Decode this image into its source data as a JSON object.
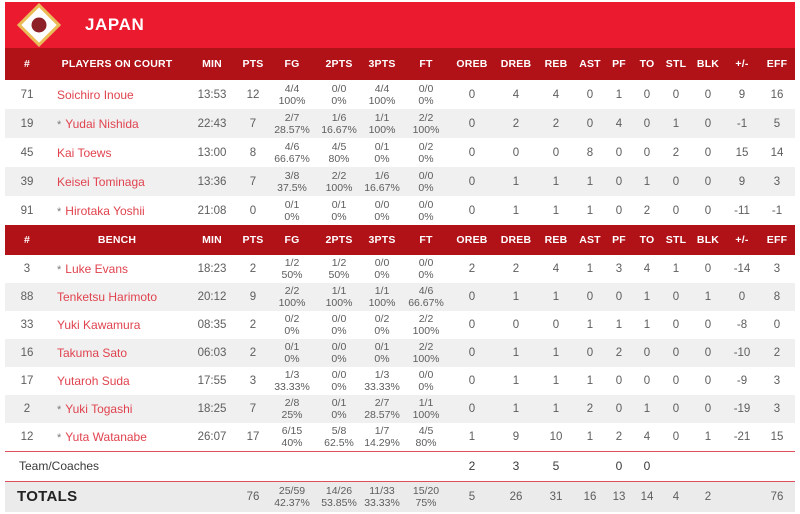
{
  "team_header": {
    "team_name": "JAPAN",
    "flag_icon": "japan-flag"
  },
  "colors": {
    "band_red": "#ec1a2e",
    "header_red": "#b11218",
    "player_name_red": "#e0434e",
    "stripe": "#f0f0f1",
    "separator_red": "#dd4f5b",
    "totals_bg": "#ebebeb",
    "flag_gold": "#e9bd55",
    "flag_circle": "#8e2127"
  },
  "columns": [
    "#",
    "PLAYERS ON COURT",
    "MIN",
    "PTS",
    "FG",
    "2PTS",
    "3PTS",
    "FT",
    "OREB",
    "DREB",
    "REB",
    "AST",
    "PF",
    "TO",
    "STL",
    "BLK",
    "+/-",
    "EFF"
  ],
  "bench_columns": [
    "#",
    "BENCH",
    "MIN",
    "PTS",
    "FG",
    "2PTS",
    "3PTS",
    "FT",
    "OREB",
    "DREB",
    "REB",
    "AST",
    "PF",
    "TO",
    "STL",
    "BLK",
    "+/-",
    "EFF"
  ],
  "players_on_court": [
    {
      "num": "71",
      "star": false,
      "name": "Soichiro Inoue",
      "min": "13:53",
      "pts": "12",
      "fg": "4/4",
      "fg_pct": "100%",
      "p2": "0/0",
      "p2_pct": "0%",
      "p3": "4/4",
      "p3_pct": "100%",
      "ft": "0/0",
      "ft_pct": "0%",
      "oreb": "0",
      "dreb": "4",
      "reb": "4",
      "ast": "0",
      "pf": "1",
      "to": "0",
      "stl": "0",
      "blk": "0",
      "pm": "9",
      "eff": "16"
    },
    {
      "num": "19",
      "star": true,
      "name": "Yudai Nishida",
      "min": "22:43",
      "pts": "7",
      "fg": "2/7",
      "fg_pct": "28.57%",
      "p2": "1/6",
      "p2_pct": "16.67%",
      "p3": "1/1",
      "p3_pct": "100%",
      "ft": "2/2",
      "ft_pct": "100%",
      "oreb": "0",
      "dreb": "2",
      "reb": "2",
      "ast": "0",
      "pf": "4",
      "to": "0",
      "stl": "1",
      "blk": "0",
      "pm": "-1",
      "eff": "5"
    },
    {
      "num": "45",
      "star": false,
      "name": "Kai Toews",
      "min": "13:00",
      "pts": "8",
      "fg": "4/6",
      "fg_pct": "66.67%",
      "p2": "4/5",
      "p2_pct": "80%",
      "p3": "0/1",
      "p3_pct": "0%",
      "ft": "0/2",
      "ft_pct": "0%",
      "oreb": "0",
      "dreb": "0",
      "reb": "0",
      "ast": "8",
      "pf": "0",
      "to": "0",
      "stl": "2",
      "blk": "0",
      "pm": "15",
      "eff": "14"
    },
    {
      "num": "39",
      "star": false,
      "name": "Keisei Tominaga",
      "min": "13:36",
      "pts": "7",
      "fg": "3/8",
      "fg_pct": "37.5%",
      "p2": "2/2",
      "p2_pct": "100%",
      "p3": "1/6",
      "p3_pct": "16.67%",
      "ft": "0/0",
      "ft_pct": "0%",
      "oreb": "0",
      "dreb": "1",
      "reb": "1",
      "ast": "1",
      "pf": "0",
      "to": "1",
      "stl": "0",
      "blk": "0",
      "pm": "9",
      "eff": "3"
    },
    {
      "num": "91",
      "star": true,
      "name": "Hirotaka Yoshii",
      "min": "21:08",
      "pts": "0",
      "fg": "0/1",
      "fg_pct": "0%",
      "p2": "0/1",
      "p2_pct": "0%",
      "p3": "0/0",
      "p3_pct": "0%",
      "ft": "0/0",
      "ft_pct": "0%",
      "oreb": "0",
      "dreb": "1",
      "reb": "1",
      "ast": "1",
      "pf": "0",
      "to": "2",
      "stl": "0",
      "blk": "0",
      "pm": "-11",
      "eff": "-1"
    }
  ],
  "bench": [
    {
      "num": "3",
      "star": true,
      "name": "Luke Evans",
      "min": "18:23",
      "pts": "2",
      "fg": "1/2",
      "fg_pct": "50%",
      "p2": "1/2",
      "p2_pct": "50%",
      "p3": "0/0",
      "p3_pct": "0%",
      "ft": "0/0",
      "ft_pct": "0%",
      "oreb": "2",
      "dreb": "2",
      "reb": "4",
      "ast": "1",
      "pf": "3",
      "to": "4",
      "stl": "1",
      "blk": "0",
      "pm": "-14",
      "eff": "3"
    },
    {
      "num": "88",
      "star": false,
      "name": "Tenketsu Harimoto",
      "min": "20:12",
      "pts": "9",
      "fg": "2/2",
      "fg_pct": "100%",
      "p2": "1/1",
      "p2_pct": "100%",
      "p3": "1/1",
      "p3_pct": "100%",
      "ft": "4/6",
      "ft_pct": "66.67%",
      "oreb": "0",
      "dreb": "1",
      "reb": "1",
      "ast": "0",
      "pf": "0",
      "to": "1",
      "stl": "0",
      "blk": "1",
      "pm": "0",
      "eff": "8"
    },
    {
      "num": "33",
      "star": false,
      "name": "Yuki Kawamura",
      "min": "08:35",
      "pts": "2",
      "fg": "0/2",
      "fg_pct": "0%",
      "p2": "0/0",
      "p2_pct": "0%",
      "p3": "0/2",
      "p3_pct": "0%",
      "ft": "2/2",
      "ft_pct": "100%",
      "oreb": "0",
      "dreb": "0",
      "reb": "0",
      "ast": "1",
      "pf": "1",
      "to": "1",
      "stl": "0",
      "blk": "0",
      "pm": "-8",
      "eff": "0"
    },
    {
      "num": "16",
      "star": false,
      "name": "Takuma Sato",
      "min": "06:03",
      "pts": "2",
      "fg": "0/1",
      "fg_pct": "0%",
      "p2": "0/0",
      "p2_pct": "0%",
      "p3": "0/1",
      "p3_pct": "0%",
      "ft": "2/2",
      "ft_pct": "100%",
      "oreb": "0",
      "dreb": "1",
      "reb": "1",
      "ast": "0",
      "pf": "2",
      "to": "0",
      "stl": "0",
      "blk": "0",
      "pm": "-10",
      "eff": "2"
    },
    {
      "num": "17",
      "star": false,
      "name": "Yutaroh Suda",
      "min": "17:55",
      "pts": "3",
      "fg": "1/3",
      "fg_pct": "33.33%",
      "p2": "0/0",
      "p2_pct": "0%",
      "p3": "1/3",
      "p3_pct": "33.33%",
      "ft": "0/0",
      "ft_pct": "0%",
      "oreb": "0",
      "dreb": "1",
      "reb": "1",
      "ast": "1",
      "pf": "0",
      "to": "0",
      "stl": "0",
      "blk": "0",
      "pm": "-9",
      "eff": "3"
    },
    {
      "num": "2",
      "star": true,
      "name": "Yuki Togashi",
      "min": "18:25",
      "pts": "7",
      "fg": "2/8",
      "fg_pct": "25%",
      "p2": "0/1",
      "p2_pct": "0%",
      "p3": "2/7",
      "p3_pct": "28.57%",
      "ft": "1/1",
      "ft_pct": "100%",
      "oreb": "0",
      "dreb": "1",
      "reb": "1",
      "ast": "2",
      "pf": "0",
      "to": "1",
      "stl": "0",
      "blk": "0",
      "pm": "-19",
      "eff": "3"
    },
    {
      "num": "12",
      "star": true,
      "name": "Yuta Watanabe",
      "min": "26:07",
      "pts": "17",
      "fg": "6/15",
      "fg_pct": "40%",
      "p2": "5/8",
      "p2_pct": "62.5%",
      "p3": "1/7",
      "p3_pct": "14.29%",
      "ft": "4/5",
      "ft_pct": "80%",
      "oreb": "1",
      "dreb": "9",
      "reb": "10",
      "ast": "1",
      "pf": "2",
      "to": "4",
      "stl": "0",
      "blk": "1",
      "pm": "-21",
      "eff": "15"
    }
  ],
  "team_coaches": {
    "label": "Team/Coaches",
    "min": "",
    "pts": "",
    "fg": "",
    "p2": "",
    "p3": "",
    "ft": "",
    "oreb": "2",
    "dreb": "3",
    "reb": "5",
    "ast": "",
    "pf": "0",
    "to": "0",
    "stl": "",
    "blk": "",
    "pm": "",
    "eff": ""
  },
  "totals": {
    "label": "TOTALS",
    "min": "",
    "pts": "76",
    "fg": "25/59",
    "fg_pct": "42.37%",
    "p2": "14/26",
    "p2_pct": "53.85%",
    "p3": "11/33",
    "p3_pct": "33.33%",
    "ft": "15/20",
    "ft_pct": "75%",
    "oreb": "5",
    "dreb": "26",
    "reb": "31",
    "ast": "16",
    "pf": "13",
    "to": "14",
    "stl": "4",
    "blk": "2",
    "pm": "",
    "eff": "76"
  }
}
